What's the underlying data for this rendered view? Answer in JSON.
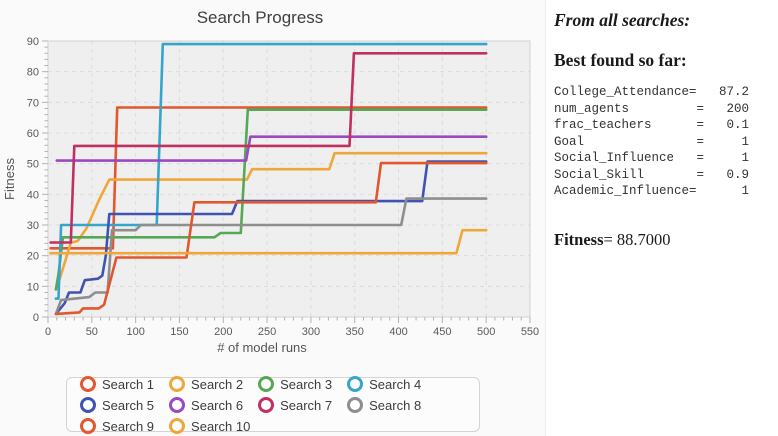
{
  "title": "Search Progress",
  "panel": {
    "heading_italic": "From all searches:",
    "heading_bold": "Best found so far:",
    "params": [
      "College_Attendance=   87.2",
      "num_agents         =   200",
      "frac_teachers      =   0.1",
      "Goal               =     1",
      "Social_Influence   =     1",
      "Social_Skill       =   0.9",
      "Academic_Influence=      1"
    ],
    "fitness_label": "Fitness",
    "fitness_value": "= 88.7000"
  },
  "chart_data": {
    "type": "line",
    "title": "Search Progress",
    "xlabel": "# of model runs",
    "ylabel": "Fitness",
    "xlim": [
      0,
      550
    ],
    "ylim": [
      0,
      90
    ],
    "x_tick_step": 50,
    "y_tick_step": 10,
    "x_minor_step": 10,
    "y_minor_step": 2,
    "grid": "dashed",
    "legend_position": "bottom",
    "plot_bg": "#efefef",
    "grid_color": "#dcdcdc",
    "series": [
      {
        "name": "Search 1",
        "color": "#e1572e",
        "points": [
          [
            3,
            22.4
          ],
          [
            74,
            22.4
          ],
          [
            79,
            68.3
          ],
          [
            500,
            68.3
          ]
        ]
      },
      {
        "name": "Search 2",
        "color": "#efa63a",
        "points": [
          [
            9,
            9
          ],
          [
            14,
            13
          ],
          [
            26,
            24.2
          ],
          [
            34,
            24.8
          ],
          [
            44,
            29
          ],
          [
            58,
            38
          ],
          [
            70,
            44.8
          ],
          [
            227,
            44.8
          ],
          [
            233,
            48.2
          ],
          [
            321,
            48.2
          ],
          [
            327,
            53.4
          ],
          [
            500,
            53.4
          ]
        ]
      },
      {
        "name": "Search 3",
        "color": "#55a855",
        "points": [
          [
            9,
            9
          ],
          [
            12,
            14
          ],
          [
            17,
            26
          ],
          [
            190,
            26
          ],
          [
            197,
            27.4
          ],
          [
            220,
            27.4
          ],
          [
            228,
            67.6
          ],
          [
            500,
            67.6
          ]
        ]
      },
      {
        "name": "Search 4",
        "color": "#35a5c9",
        "points": [
          [
            9,
            6
          ],
          [
            12,
            6
          ],
          [
            15,
            30
          ],
          [
            124,
            30
          ],
          [
            131,
            89
          ],
          [
            500,
            89
          ]
        ]
      },
      {
        "name": "Search 5",
        "color": "#4053b2",
        "points": [
          [
            9,
            1
          ],
          [
            19,
            4.5
          ],
          [
            24,
            8
          ],
          [
            37,
            8
          ],
          [
            42,
            12
          ],
          [
            57,
            12.5
          ],
          [
            62,
            13.5
          ],
          [
            66,
            20
          ],
          [
            70,
            33.6
          ],
          [
            210,
            33.6
          ],
          [
            216,
            37.8
          ],
          [
            427,
            37.8
          ],
          [
            433,
            50.7
          ],
          [
            500,
            50.7
          ]
        ]
      },
      {
        "name": "Search 6",
        "color": "#9a49c2",
        "points": [
          [
            10,
            51
          ],
          [
            226,
            51
          ],
          [
            231,
            58.8
          ],
          [
            500,
            58.8
          ]
        ]
      },
      {
        "name": "Search 7",
        "color": "#c03060",
        "points": [
          [
            3,
            24.3
          ],
          [
            26,
            24.3
          ],
          [
            30,
            55.8
          ],
          [
            344,
            55.8
          ],
          [
            349,
            86
          ],
          [
            500,
            86
          ]
        ]
      },
      {
        "name": "Search 8",
        "color": "#8e8e8e",
        "points": [
          [
            9,
            1
          ],
          [
            15,
            5.5
          ],
          [
            47,
            6.5
          ],
          [
            54,
            8
          ],
          [
            68,
            8
          ],
          [
            73,
            28.3
          ],
          [
            100,
            28.3
          ],
          [
            106,
            30
          ],
          [
            403,
            30
          ],
          [
            409,
            38.6
          ],
          [
            500,
            38.6
          ]
        ]
      },
      {
        "name": "Search 9",
        "color": "#e1572e",
        "points": [
          [
            9,
            1
          ],
          [
            36,
            1.5
          ],
          [
            40,
            2.8
          ],
          [
            58,
            2.8
          ],
          [
            64,
            4
          ],
          [
            78,
            19.4
          ],
          [
            158,
            19.4
          ],
          [
            167,
            37.4
          ],
          [
            374,
            37.4
          ],
          [
            380,
            50.2
          ],
          [
            500,
            50.2
          ]
        ]
      },
      {
        "name": "Search 10",
        "color": "#efa63a",
        "points": [
          [
            3,
            20.8
          ],
          [
            466,
            20.8
          ],
          [
            473,
            28.3
          ],
          [
            500,
            28.3
          ]
        ]
      }
    ]
  }
}
